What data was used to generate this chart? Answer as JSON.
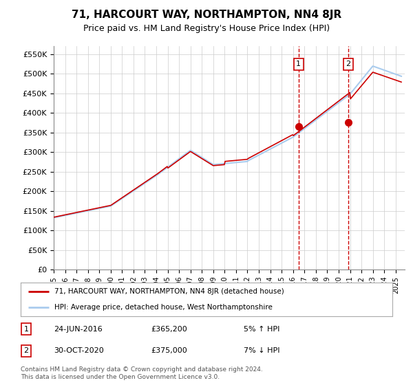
{
  "title": "71, HARCOURT WAY, NORTHAMPTON, NN4 8JR",
  "subtitle": "Price paid vs. HM Land Registry's House Price Index (HPI)",
  "ylim": [
    0,
    570000
  ],
  "yticks": [
    0,
    50000,
    100000,
    150000,
    200000,
    250000,
    300000,
    350000,
    400000,
    450000,
    500000,
    550000
  ],
  "ytick_labels": [
    "£0",
    "£50K",
    "£100K",
    "£150K",
    "£200K",
    "£250K",
    "£300K",
    "£350K",
    "£400K",
    "£450K",
    "£500K",
    "£550K"
  ],
  "red_line_label": "71, HARCOURT WAY, NORTHAMPTON, NN4 8JR (detached house)",
  "blue_line_label": "HPI: Average price, detached house, West Northamptonshire",
  "transaction1": {
    "label": "1",
    "date": "24-JUN-2016",
    "price": "£365,200",
    "hpi": "5% ↑ HPI",
    "year": 2016.48,
    "value": 365200
  },
  "transaction2": {
    "label": "2",
    "date": "30-OCT-2020",
    "price": "£375,000",
    "hpi": "7% ↓ HPI",
    "year": 2020.83,
    "value": 375000
  },
  "footer": "Contains HM Land Registry data © Crown copyright and database right 2024.\nThis data is licensed under the Open Government Licence v3.0.",
  "bg_color": "#ffffff",
  "grid_color": "#cccccc",
  "red_color": "#cc0000",
  "blue_color": "#aaccee",
  "title_fontsize": 11,
  "subtitle_fontsize": 9,
  "tick_fontsize": 8
}
